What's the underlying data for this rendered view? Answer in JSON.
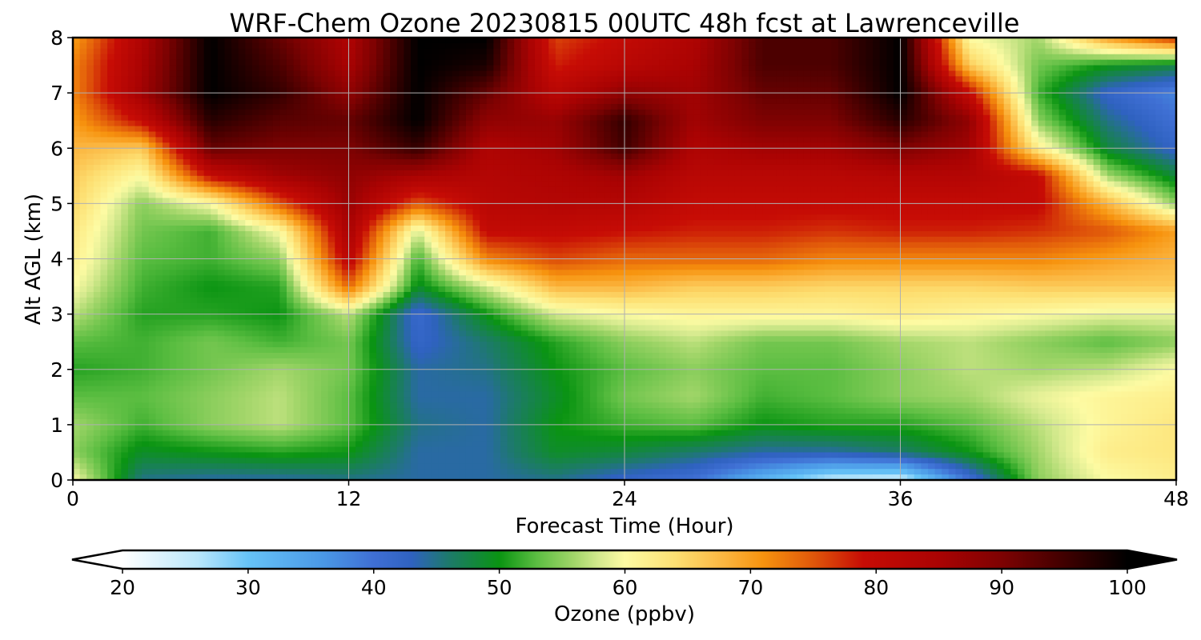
{
  "chart_data": {
    "type": "heatmap",
    "title": "WRF-Chem Ozone  20230815 00UTC 48h fcst at Lawrenceville",
    "xlabel": "Forecast Time (Hour)",
    "ylabel": "Alt AGL (km)",
    "xlim": [
      0,
      48
    ],
    "ylim": [
      0,
      8
    ],
    "x_ticks": [
      0,
      12,
      24,
      36,
      48
    ],
    "y_ticks": [
      0,
      1,
      2,
      3,
      4,
      5,
      6,
      7,
      8
    ],
    "grid": true,
    "x": [
      0,
      3,
      6,
      9,
      12,
      15,
      18,
      21,
      24,
      27,
      30,
      33,
      36,
      39,
      42,
      45,
      48
    ],
    "y": [
      0,
      0.5,
      1,
      1.5,
      2,
      2.5,
      3,
      3.5,
      4,
      4.5,
      5,
      5.5,
      6,
      6.5,
      7,
      7.5,
      8
    ],
    "values": [
      [
        60,
        45,
        44,
        44,
        45,
        44,
        44,
        45,
        42,
        40,
        32,
        25,
        24,
        40,
        55,
        60,
        62
      ],
      [
        55,
        49,
        50,
        51,
        50,
        44,
        44,
        49,
        48,
        46,
        44,
        44,
        46,
        50,
        56,
        62,
        63
      ],
      [
        56,
        52,
        55,
        57,
        53,
        45,
        44,
        50,
        52,
        53,
        50,
        51,
        51,
        53,
        57,
        61,
        63
      ],
      [
        53,
        53,
        55,
        57,
        53,
        44,
        44,
        49,
        54,
        56,
        52,
        53,
        55,
        56,
        59,
        61,
        62
      ],
      [
        51,
        52,
        54,
        56,
        54,
        44,
        45,
        50,
        53,
        55,
        53,
        53,
        55,
        57,
        56,
        57,
        60
      ],
      [
        53,
        52,
        54,
        52,
        54,
        42,
        46,
        51,
        55,
        57,
        54,
        54,
        56,
        57,
        55,
        53,
        55
      ],
      [
        57,
        51,
        51,
        50,
        57,
        41,
        50,
        58,
        60,
        61,
        61,
        61,
        62,
        61,
        60,
        59,
        59
      ],
      [
        60,
        52,
        50,
        51,
        74,
        49,
        58,
        68,
        68,
        66,
        66,
        65,
        65,
        65,
        66,
        66,
        66
      ],
      [
        62,
        53,
        52,
        55,
        82,
        52,
        72,
        76,
        74,
        74,
        74,
        72,
        72,
        72,
        72,
        70,
        68
      ],
      [
        63,
        54,
        52,
        60,
        85,
        58,
        80,
        80,
        79,
        78,
        78,
        77,
        78,
        78,
        77,
        75,
        70
      ],
      [
        65,
        55,
        60,
        75,
        87,
        75,
        82,
        83,
        83,
        80,
        80,
        80,
        80,
        80,
        80,
        68,
        55
      ],
      [
        66,
        60,
        80,
        86,
        88,
        85,
        83,
        84,
        86,
        82,
        82,
        82,
        83,
        83,
        80,
        56,
        48
      ],
      [
        68,
        66,
        92,
        90,
        90,
        96,
        84,
        86,
        95,
        84,
        86,
        86,
        90,
        86,
        62,
        48,
        42
      ],
      [
        70,
        80,
        97,
        93,
        92,
        100,
        88,
        87,
        96,
        86,
        90,
        90,
        97,
        88,
        55,
        45,
        40
      ],
      [
        72,
        86,
        100,
        96,
        88,
        100,
        92,
        82,
        88,
        86,
        92,
        92,
        100,
        80,
        52,
        42,
        38
      ],
      [
        72,
        85,
        100,
        94,
        85,
        100,
        98,
        78,
        82,
        85,
        94,
        94,
        100,
        66,
        54,
        50,
        48
      ],
      [
        70,
        84,
        100,
        92,
        84,
        100,
        100,
        76,
        80,
        84,
        94,
        94,
        100,
        60,
        56,
        70,
        78
      ]
    ],
    "colorbar": {
      "label": "Ozone  (ppbv)",
      "min": 20,
      "max": 100,
      "ticks": [
        20,
        30,
        40,
        50,
        60,
        70,
        80,
        90,
        100
      ],
      "extend": "both",
      "color_stops": [
        {
          "v": 20,
          "c": "#ffffff"
        },
        {
          "v": 26,
          "c": "#b9e6fb"
        },
        {
          "v": 30,
          "c": "#66c3f7"
        },
        {
          "v": 36,
          "c": "#4a98e6"
        },
        {
          "v": 40,
          "c": "#3f6fd4"
        },
        {
          "v": 43,
          "c": "#2f62c0"
        },
        {
          "v": 46,
          "c": "#1d7a6a"
        },
        {
          "v": 50,
          "c": "#0a9412"
        },
        {
          "v": 53,
          "c": "#5cbe42"
        },
        {
          "v": 56,
          "c": "#a3d66a"
        },
        {
          "v": 58,
          "c": "#d6ea8f"
        },
        {
          "v": 60,
          "c": "#fdfba3"
        },
        {
          "v": 64,
          "c": "#fde073"
        },
        {
          "v": 68,
          "c": "#fbb43e"
        },
        {
          "v": 71,
          "c": "#f7930e"
        },
        {
          "v": 75,
          "c": "#e0570a"
        },
        {
          "v": 79,
          "c": "#c70c05"
        },
        {
          "v": 85,
          "c": "#aa0303"
        },
        {
          "v": 90,
          "c": "#7e0202"
        },
        {
          "v": 95,
          "c": "#400000"
        },
        {
          "v": 100,
          "c": "#000000"
        }
      ]
    }
  }
}
